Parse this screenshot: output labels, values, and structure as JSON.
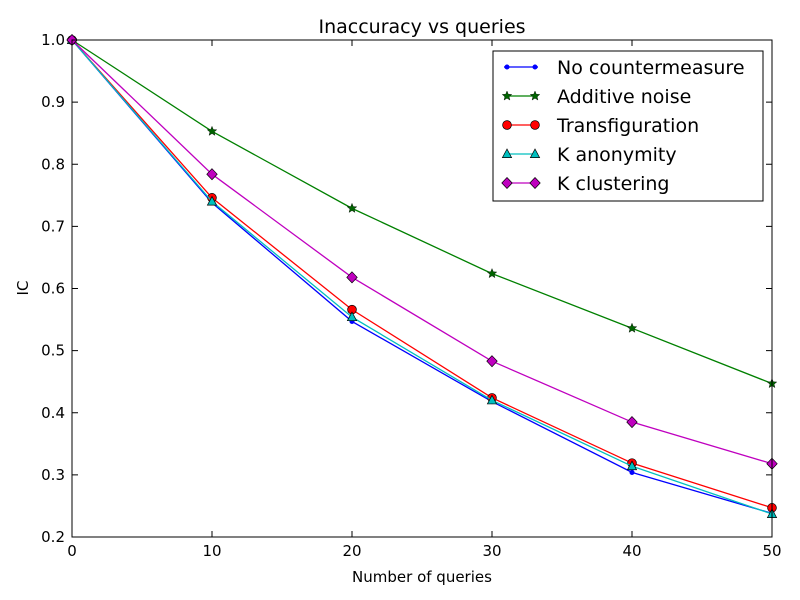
{
  "chart_data": {
    "type": "line",
    "title": "Inaccuracy vs queries",
    "xlabel": "Number of queries",
    "ylabel": "IC",
    "xlim": [
      0,
      50
    ],
    "ylim": [
      0.2,
      1.0
    ],
    "x_ticks": [
      "0",
      "10",
      "20",
      "30",
      "40",
      "50"
    ],
    "y_ticks": [
      "0.2",
      "0.3",
      "0.4",
      "0.5",
      "0.6",
      "0.7",
      "0.8",
      "0.9",
      "1.0"
    ],
    "grid": false,
    "legend_position": "top-right",
    "x": [
      0,
      10,
      20,
      30,
      40,
      50
    ],
    "series": [
      {
        "name": "No countermeasure",
        "color": "#0000ff",
        "marker": "point",
        "values": [
          1.0,
          0.738,
          0.547,
          0.418,
          0.304,
          0.238
        ]
      },
      {
        "name": "Additive noise",
        "color": "#008000",
        "marker": "star",
        "values": [
          1.0,
          0.853,
          0.729,
          0.624,
          0.536,
          0.447
        ]
      },
      {
        "name": "Transfiguration",
        "color": "#ff0000",
        "marker": "circle",
        "values": [
          1.0,
          0.746,
          0.566,
          0.424,
          0.319,
          0.247
        ]
      },
      {
        "name": "K anonymity",
        "color": "#00bfbf",
        "marker": "triangle",
        "values": [
          1.0,
          0.74,
          0.554,
          0.42,
          0.314,
          0.237
        ]
      },
      {
        "name": "K clustering",
        "color": "#bf00bf",
        "marker": "diamond",
        "values": [
          1.0,
          0.784,
          0.618,
          0.483,
          0.385,
          0.318
        ]
      }
    ]
  }
}
